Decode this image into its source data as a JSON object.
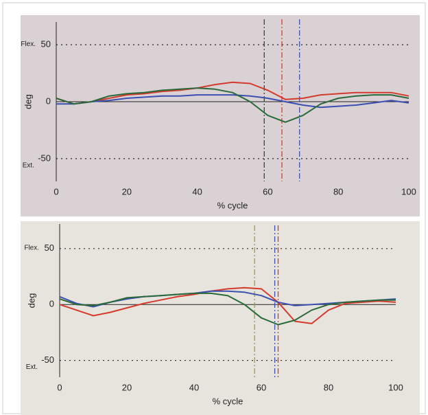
{
  "chart_data": [
    {
      "type": "line",
      "x_label": "% cycle",
      "y_label": "deg",
      "annotations": [
        "Flex.",
        "Ext."
      ],
      "x": [
        0,
        5,
        10,
        15,
        20,
        25,
        30,
        35,
        40,
        45,
        50,
        55,
        60,
        65,
        70,
        75,
        80,
        85,
        90,
        95,
        100
      ],
      "xlim": [
        0,
        100
      ],
      "xticks": [
        0,
        20,
        40,
        60,
        80,
        100
      ],
      "ylim": [
        -70,
        70
      ],
      "yticks": [
        50,
        0,
        -50
      ],
      "series": [
        {
          "color": "#d43a2c",
          "values": [
            3,
            -2,
            0,
            3,
            6,
            7,
            9,
            10,
            12,
            15,
            17,
            16,
            10,
            2,
            3,
            6,
            7,
            8,
            8,
            8,
            5
          ]
        },
        {
          "color": "#3a4fb0",
          "values": [
            -2,
            -2,
            0,
            1,
            3,
            4,
            5,
            5,
            6,
            6,
            6,
            5,
            3,
            0,
            -3,
            -5,
            -4,
            -3,
            -1,
            1,
            -1
          ]
        },
        {
          "color": "#2a6a3a",
          "values": [
            3,
            -2,
            0,
            5,
            7,
            8,
            10,
            11,
            12,
            11,
            8,
            0,
            -12,
            -18,
            -12,
            -2,
            3,
            5,
            6,
            6,
            3
          ]
        }
      ],
      "event_lines": [
        {
          "x": 59,
          "color": "#2a4a2a"
        },
        {
          "x": 64,
          "color": "#d43a2c"
        },
        {
          "x": 69,
          "color": "#3a4fb0"
        }
      ]
    },
    {
      "type": "line",
      "x_label": "% cycle",
      "y_label": "deg",
      "annotations": [
        "Flex.",
        "Ext."
      ],
      "x": [
        0,
        5,
        10,
        15,
        20,
        25,
        30,
        35,
        40,
        45,
        50,
        55,
        60,
        65,
        70,
        75,
        80,
        85,
        90,
        95,
        100
      ],
      "xlim": [
        0,
        100
      ],
      "xticks": [
        0,
        20,
        40,
        60,
        80,
        100
      ],
      "ylim": [
        -65,
        72
      ],
      "yticks": [
        50,
        0,
        -50
      ],
      "series": [
        {
          "color": "#d43a2c",
          "values": [
            0,
            -5,
            -10,
            -7,
            -3,
            1,
            4,
            7,
            9,
            12,
            14,
            15,
            14,
            2,
            -15,
            -17,
            -5,
            1,
            2,
            3,
            2
          ]
        },
        {
          "color": "#3a4fb0",
          "values": [
            7,
            1,
            -2,
            2,
            5,
            7,
            8,
            9,
            10,
            12,
            12,
            11,
            8,
            2,
            -1,
            0,
            1,
            2,
            3,
            4,
            5
          ]
        },
        {
          "color": "#2a6a3a",
          "values": [
            5,
            0,
            -1,
            2,
            6,
            7,
            8,
            9,
            10,
            10,
            8,
            0,
            -12,
            -18,
            -14,
            -5,
            0,
            2,
            3,
            4,
            4
          ]
        }
      ],
      "event_lines": [
        {
          "x": 58,
          "color": "#9a9a40"
        },
        {
          "x": 64,
          "color": "#3a4fb0"
        },
        {
          "x": 65,
          "color": "#d43a2c"
        }
      ]
    }
  ]
}
